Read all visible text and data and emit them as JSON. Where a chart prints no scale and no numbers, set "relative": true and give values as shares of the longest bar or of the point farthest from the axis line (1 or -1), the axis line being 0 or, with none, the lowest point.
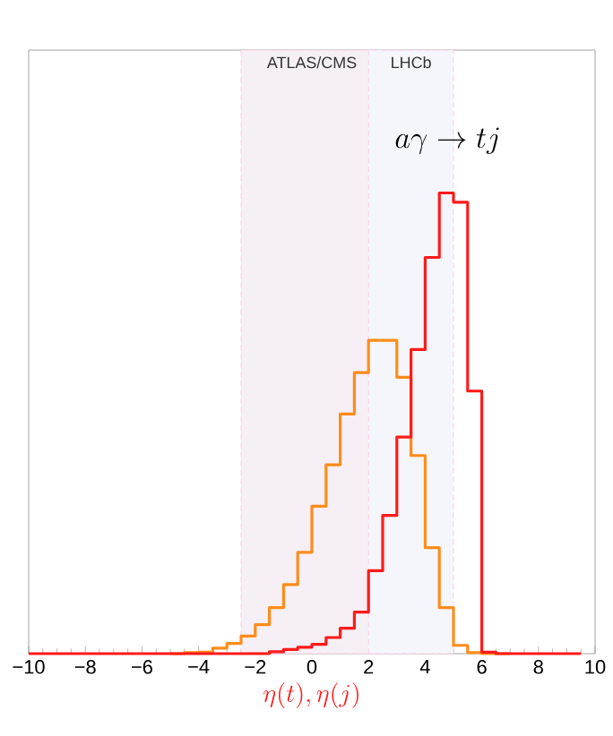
{
  "chart_data": {
    "type": "step",
    "relative": true,
    "xlabel": "\\eta(t),\\eta(j)",
    "annotations": [
      "a\\gamma \\to tj"
    ],
    "x": [
      -10,
      -9.5,
      -9,
      -8.5,
      -8,
      -7.5,
      -7,
      -6.5,
      -6,
      -5.5,
      -5,
      -4.5,
      -4,
      -3.5,
      -3,
      -2.5,
      -2,
      -1.5,
      -1,
      -0.5,
      0,
      0.5,
      1,
      1.5,
      2,
      2.5,
      3,
      3.5,
      4,
      4.5,
      5,
      5.5,
      6,
      6.5,
      7,
      7.5,
      8,
      8.5,
      9,
      9.5
    ],
    "series": [
      {
        "color": "#ff8c1a",
        "values": [
          null,
          null,
          null,
          null,
          null,
          null,
          null,
          null,
          null,
          null,
          0,
          0.002,
          0.003,
          0.012,
          0.022,
          0.038,
          0.063,
          0.1,
          0.15,
          0.22,
          0.32,
          0.41,
          0.52,
          0.61,
          0.68,
          0.68,
          0.6,
          0.43,
          0.23,
          0.1,
          0.018,
          0.002,
          0,
          0,
          0,
          null,
          null,
          null,
          null,
          null
        ]
      },
      {
        "color": "#ff1a1a",
        "values": [
          0,
          0,
          0,
          0,
          0,
          0,
          0,
          0,
          0,
          0,
          0,
          0,
          0,
          0,
          0,
          0,
          0,
          0.004,
          0.009,
          0.014,
          0.02,
          0.035,
          0.055,
          0.09,
          0.18,
          0.3,
          0.47,
          0.66,
          0.86,
          1.0,
          0.98,
          0.57,
          0.003,
          0,
          0,
          0,
          0,
          0,
          0,
          0
        ]
      }
    ],
    "xlim": [
      -10,
      10
    ],
    "xticks": [
      {
        "value": -10,
        "label": "−10"
      },
      {
        "value": -8,
        "label": "−8"
      },
      {
        "value": -6,
        "label": "−6"
      },
      {
        "value": -4,
        "label": "−4"
      },
      {
        "value": -2,
        "label": "−2"
      },
      {
        "value": 0,
        "label": "0"
      },
      {
        "value": 2,
        "label": "2"
      },
      {
        "value": 4,
        "label": "4"
      },
      {
        "value": 6,
        "label": "6"
      },
      {
        "value": 8,
        "label": "8"
      },
      {
        "value": 10,
        "label": "10"
      }
    ],
    "bands": [
      {
        "axis": "x",
        "from": -2.5,
        "to": 2.5,
        "label": "ATLAS/CMS",
        "color": "#f6eff5"
      },
      {
        "axis": "x",
        "from": 2,
        "to": 5,
        "label": "LHCb",
        "color": "#f5f6fb"
      }
    ],
    "grid": false,
    "marker": "none",
    "line_style": "solid"
  }
}
